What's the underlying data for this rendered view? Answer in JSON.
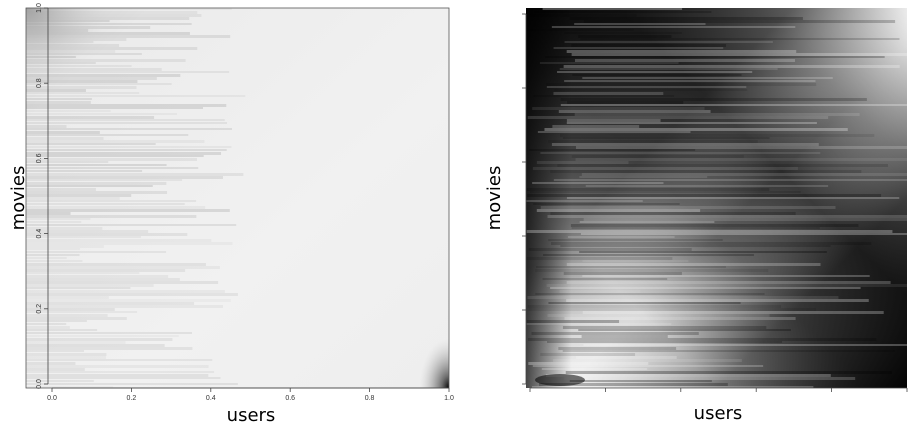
{
  "chart_data": [
    {
      "type": "heatmap",
      "title": "",
      "xlabel": "users",
      "ylabel": "movies",
      "xlim": [
        0,
        1
      ],
      "ylim": [
        0,
        1
      ],
      "x_ticks": [
        "0.0",
        "0.2",
        "0.4",
        "0.6",
        "0.8",
        "1.0"
      ],
      "y_ticks": [
        "0.0",
        "0.2",
        "0.4",
        "0.6",
        "0.8",
        "1.0"
      ],
      "colormap": "grayscale, darker = higher density",
      "description_of_pattern": "nearly uniform light gray with faint horizontal banding; dark spot at the top-left corner and at the bottom-right corner (users=1, movies=0)"
    },
    {
      "type": "heatmap",
      "title": "",
      "xlabel": "users",
      "ylabel": "movies",
      "xlim": [
        0,
        1
      ],
      "ylim": [
        0,
        1
      ],
      "x_ticks": [
        "",
        "",
        "",
        "",
        "",
        ""
      ],
      "y_ticks": [
        "",
        "",
        "",
        "",
        "",
        ""
      ],
      "colormap": "grayscale, contrast-enhanced",
      "description_of_pattern": "dark upper-left region and dark lower-right triangle separated by a light diagonal band running from upper-right to lower-left; strong horizontal streaks"
    }
  ]
}
